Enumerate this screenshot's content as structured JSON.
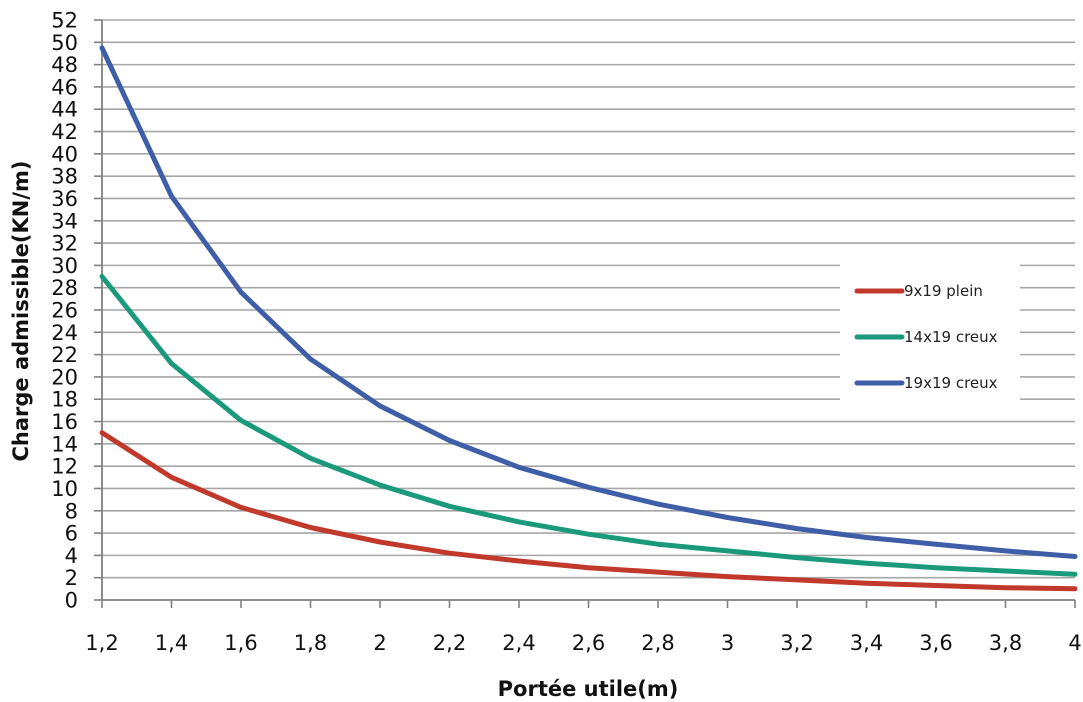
{
  "chart_data": {
    "type": "line",
    "title": "",
    "xlabel": "Portée utile(m)",
    "ylabel": "Charge admissible(KN/m)",
    "x": [
      1.2,
      1.4,
      1.6,
      1.8,
      2,
      2.2,
      2.4,
      2.6,
      2.8,
      3,
      3.2,
      3.4,
      3.6,
      3.8,
      4
    ],
    "x_tick_labels": [
      "1,2",
      "1,4",
      "1,6",
      "1,8",
      "2",
      "2,2",
      "2,4",
      "2,6",
      "2,8",
      "3",
      "3,2",
      "3,4",
      "3,6",
      "3,8",
      "4"
    ],
    "y_ticks": [
      0,
      2,
      4,
      6,
      8,
      10,
      12,
      14,
      16,
      18,
      20,
      22,
      24,
      26,
      28,
      30,
      32,
      34,
      36,
      38,
      40,
      42,
      44,
      46,
      48,
      50,
      52
    ],
    "xlim": [
      1.2,
      4
    ],
    "ylim": [
      0,
      52
    ],
    "grid": true,
    "legend_position": "right",
    "series": [
      {
        "name": "9x19 plein",
        "color": "#c0392b",
        "values": [
          15,
          11,
          8.3,
          6.5,
          5.2,
          4.2,
          3.5,
          2.9,
          2.5,
          2.1,
          1.8,
          1.5,
          1.3,
          1.1,
          1.0
        ]
      },
      {
        "name": "14x19 creux",
        "color": "#1a9a7b",
        "values": [
          29,
          21.2,
          16.1,
          12.7,
          10.3,
          8.4,
          7.0,
          5.9,
          5.0,
          4.4,
          3.8,
          3.3,
          2.9,
          2.6,
          2.3
        ]
      },
      {
        "name": "19x19 creux",
        "color": "#3e5fa8",
        "values": [
          49.5,
          36.2,
          27.6,
          21.6,
          17.4,
          14.3,
          11.9,
          10.1,
          8.6,
          7.4,
          6.4,
          5.6,
          5.0,
          4.4,
          3.9
        ]
      }
    ]
  }
}
